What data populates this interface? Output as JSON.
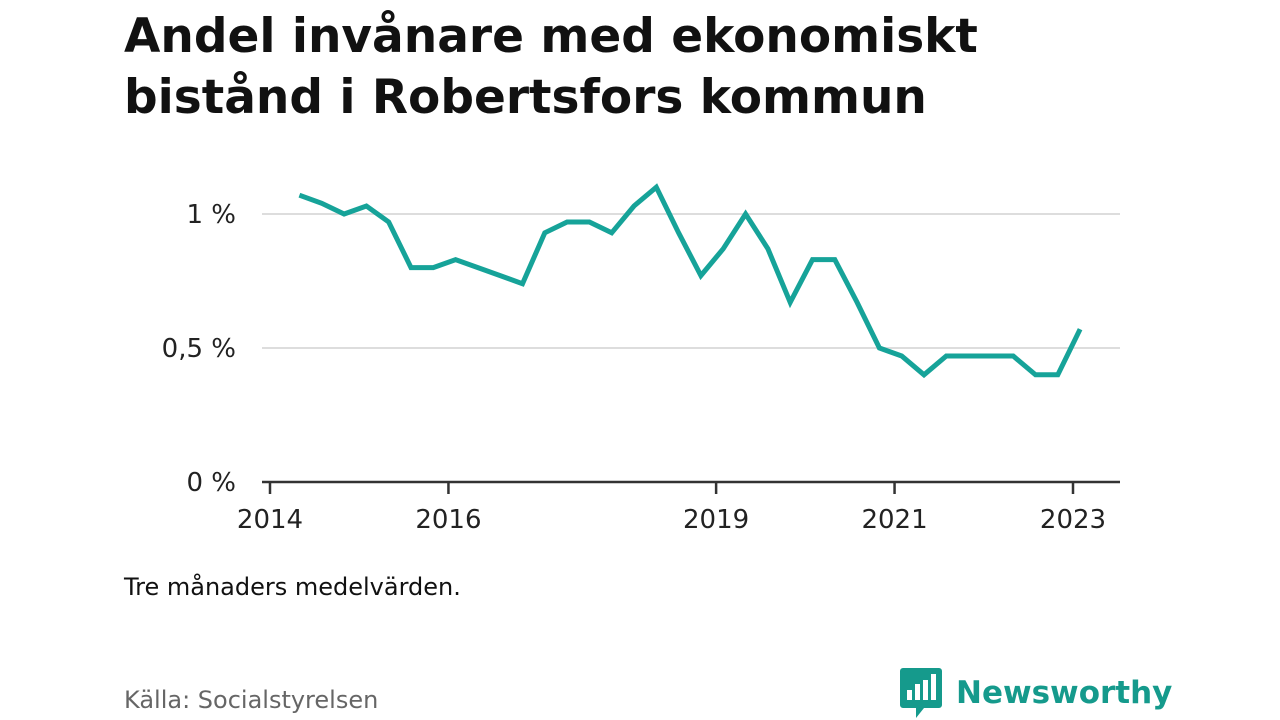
{
  "header": {
    "title": "Andel invånare med ekonomiskt bistånd i Robertsfors kommun"
  },
  "chart_data": {
    "type": "line",
    "title": "Andel invånare med ekonomiskt bistånd i Robertsfors kommun",
    "subtitle": "",
    "xlabel": "",
    "ylabel": "",
    "x_ticks": [
      "2014",
      "2016",
      "2019",
      "2021",
      "2023"
    ],
    "x_tick_values": [
      2014.0,
      2016.0,
      2019.0,
      2021.0,
      2023.0
    ],
    "y_ticks": [
      "0 %",
      "0,5 %",
      "1 %"
    ],
    "y_tick_values": [
      0,
      0.5,
      1.0
    ],
    "xlim": [
      2014.0,
      2023.5
    ],
    "ylim": [
      0,
      1.13
    ],
    "grid": true,
    "series": [
      {
        "values": [
          [
            2014.33,
            1.07
          ],
          [
            2014.58,
            1.04
          ],
          [
            2014.83,
            1.0
          ],
          [
            2015.08,
            1.03
          ],
          [
            2015.33,
            0.97
          ],
          [
            2015.58,
            0.8
          ],
          [
            2015.83,
            0.8
          ],
          [
            2016.08,
            0.83
          ],
          [
            2016.33,
            0.8
          ],
          [
            2016.58,
            0.77
          ],
          [
            2016.83,
            0.74
          ],
          [
            2017.08,
            0.93
          ],
          [
            2017.33,
            0.97
          ],
          [
            2017.58,
            0.97
          ],
          [
            2017.83,
            0.93
          ],
          [
            2018.08,
            1.03
          ],
          [
            2018.33,
            1.1
          ],
          [
            2018.58,
            0.93
          ],
          [
            2018.83,
            0.77
          ],
          [
            2019.08,
            0.87
          ],
          [
            2019.33,
            1.0
          ],
          [
            2019.58,
            0.87
          ],
          [
            2019.83,
            0.67
          ],
          [
            2020.08,
            0.83
          ],
          [
            2020.33,
            0.83
          ],
          [
            2020.58,
            0.67
          ],
          [
            2020.83,
            0.5
          ],
          [
            2021.08,
            0.47
          ],
          [
            2021.33,
            0.4
          ],
          [
            2021.58,
            0.47
          ],
          [
            2021.83,
            0.47
          ],
          [
            2022.08,
            0.47
          ],
          [
            2022.33,
            0.47
          ],
          [
            2022.58,
            0.4
          ],
          [
            2022.83,
            0.4
          ],
          [
            2023.08,
            0.57
          ]
        ]
      }
    ],
    "colors": {
      "line": "#16a399",
      "grid": "#dddddd",
      "axis": "#333333"
    }
  },
  "footer": {
    "note": "Tre månaders medelvärden.",
    "source": "Källa: Socialstyrelsen",
    "brand": "Newsworthy",
    "brand_icon": "newsworthy-logo-icon",
    "brand_color": "#159a8c"
  }
}
